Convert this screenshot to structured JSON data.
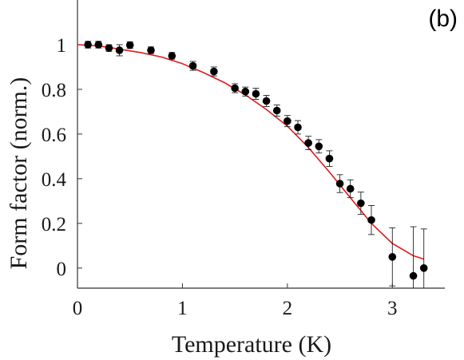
{
  "chart_data": {
    "type": "scatter",
    "panel_label": "(b)",
    "xlabel": "Temperature (K)",
    "ylabel": "Form factor (norm.)",
    "xlim": [
      0,
      3.5
    ],
    "ylim": [
      -0.09,
      1.2
    ],
    "xticks": [
      {
        "value": 0,
        "label": "0"
      },
      {
        "value": 1,
        "label": "1"
      },
      {
        "value": 2,
        "label": "2"
      },
      {
        "value": 3,
        "label": "3"
      }
    ],
    "yticks": [
      {
        "value": 0,
        "label": "0"
      },
      {
        "value": 0.2,
        "label": "0.2"
      },
      {
        "value": 0.4,
        "label": "0.4"
      },
      {
        "value": 0.6,
        "label": "0.6"
      },
      {
        "value": 0.8,
        "label": "0.8"
      },
      {
        "value": 1,
        "label": "1"
      }
    ],
    "grid": false,
    "colors": {
      "points": "#000000",
      "fit": "#e31a1c",
      "axis": "#333333"
    },
    "series": [
      {
        "kind": "points",
        "x": [
          0.1,
          0.2,
          0.3,
          0.4,
          0.5,
          0.7,
          0.9,
          1.1,
          1.3,
          1.5,
          1.6,
          1.7,
          1.8,
          1.9,
          2.0,
          2.1,
          2.2,
          2.3,
          2.4,
          2.5,
          2.6,
          2.7,
          2.8,
          3.0,
          3.2,
          3.3
        ],
        "y": [
          1.0,
          1.0,
          0.985,
          0.975,
          0.998,
          0.975,
          0.95,
          0.905,
          0.88,
          0.805,
          0.79,
          0.78,
          0.748,
          0.705,
          0.658,
          0.63,
          0.56,
          0.545,
          0.49,
          0.378,
          0.355,
          0.29,
          0.215,
          0.05,
          -0.035,
          0.0
        ],
        "err": [
          0.015,
          0.015,
          0.015,
          0.025,
          0.015,
          0.015,
          0.015,
          0.02,
          0.02,
          0.02,
          0.02,
          0.025,
          0.025,
          0.025,
          0.025,
          0.03,
          0.03,
          0.03,
          0.035,
          0.04,
          0.04,
          0.05,
          0.065,
          0.13,
          0.22,
          0.175
        ]
      },
      {
        "kind": "fit",
        "x": [
          0,
          0.2,
          0.4,
          0.6,
          0.8,
          1.0,
          1.2,
          1.4,
          1.6,
          1.8,
          2.0,
          2.2,
          2.4,
          2.6,
          2.8,
          3.0,
          3.2,
          3.3
        ],
        "y": [
          1.0,
          0.995,
          0.98,
          0.965,
          0.945,
          0.915,
          0.875,
          0.83,
          0.775,
          0.71,
          0.635,
          0.54,
          0.43,
          0.315,
          0.2,
          0.11,
          0.055,
          0.04
        ]
      }
    ]
  }
}
